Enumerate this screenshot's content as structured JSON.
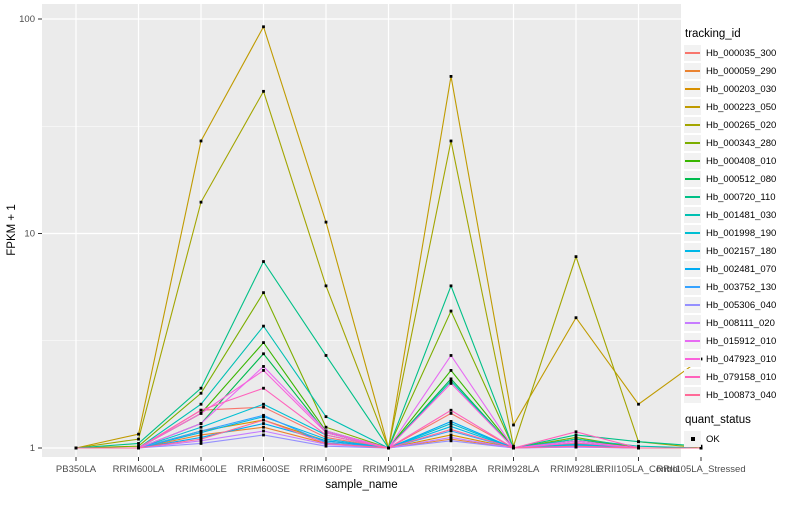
{
  "chart_data": {
    "type": "line",
    "title": "",
    "xlabel": "sample_name",
    "ylabel": "FPKM + 1",
    "y_scale": "log10",
    "y_ticks": [
      1,
      10,
      100
    ],
    "ylim": [
      0.95,
      110
    ],
    "grid": true,
    "legend_position": "right",
    "panel_background": "#EBEBEB",
    "gridline_color": "#FFFFFF",
    "point_marker": "black-square",
    "categories": [
      "PB350LA",
      "RRIM600LA",
      "RRIM600LE",
      "RRIM600SE",
      "RRIM600PE",
      "RRIM901LA",
      "RRIM928BA",
      "RRIM928LA",
      "RRIM928LE",
      "RRII105LA_Control",
      "RRII105LA_Stressed"
    ],
    "series": [
      {
        "name": "Hb_000035_300",
        "color": "#F8766D",
        "values": [
          1,
          1,
          1.5,
          1.55,
          1.12,
          1,
          1.45,
          1,
          1.05,
          1,
          1
        ]
      },
      {
        "name": "Hb_000059_290",
        "color": "#EA8331",
        "values": [
          1,
          1,
          1.15,
          1.25,
          1.05,
          1,
          1.1,
          1,
          1.02,
          1,
          1
        ]
      },
      {
        "name": "Hb_000203_030",
        "color": "#D89000",
        "values": [
          1,
          1,
          1.2,
          1.35,
          1.08,
          1,
          1.15,
          1,
          1.03,
          1,
          1
        ]
      },
      {
        "name": "Hb_000223_050",
        "color": "#C09B00",
        "values": [
          1,
          1.16,
          27,
          92,
          11.3,
          1,
          54,
          1.28,
          4.05,
          1.6,
          2.6
        ]
      },
      {
        "name": "Hb_000265_020",
        "color": "#A3A500",
        "values": [
          1,
          1.1,
          14,
          46,
          5.7,
          1,
          27,
          1.02,
          7.8,
          1.07,
          1
        ]
      },
      {
        "name": "Hb_000343_280",
        "color": "#7CAE00",
        "values": [
          1,
          1.02,
          1.8,
          5.3,
          1.25,
          1,
          4.35,
          1,
          1.12,
          1,
          1
        ]
      },
      {
        "name": "Hb_000408_010",
        "color": "#39B600",
        "values": [
          1,
          1,
          1.45,
          3.1,
          1.2,
          1,
          2.3,
          1,
          1.1,
          1,
          1
        ]
      },
      {
        "name": "Hb_000512_080",
        "color": "#00BB4E",
        "values": [
          1,
          1,
          1.3,
          2.75,
          1.18,
          1,
          2.1,
          1,
          1.08,
          1,
          1
        ]
      },
      {
        "name": "Hb_000720_110",
        "color": "#00C087",
        "values": [
          1,
          1.05,
          1.9,
          7.4,
          2.7,
          1,
          5.7,
          1,
          1.15,
          1.07,
          1.02
        ]
      },
      {
        "name": "Hb_001481_030",
        "color": "#00C0B2",
        "values": [
          1,
          1,
          1.6,
          3.7,
          1.4,
          1,
          2.05,
          1,
          1.1,
          1.02,
          1
        ]
      },
      {
        "name": "Hb_001998_190",
        "color": "#00BFD3",
        "values": [
          1,
          1,
          1.25,
          1.6,
          1.15,
          1,
          1.3,
          1,
          1.04,
          1,
          1
        ]
      },
      {
        "name": "Hb_002157_180",
        "color": "#00B8E7",
        "values": [
          1,
          1,
          1.18,
          1.4,
          1.1,
          1,
          1.26,
          1,
          1.03,
          1,
          1
        ]
      },
      {
        "name": "Hb_002481_070",
        "color": "#00ACF3",
        "values": [
          1,
          1,
          1.12,
          1.3,
          1.08,
          1,
          1.33,
          1,
          1.02,
          1,
          1
        ]
      },
      {
        "name": "Hb_003752_130",
        "color": "#35A2FF",
        "values": [
          1,
          1,
          1.2,
          1.42,
          1.06,
          1,
          1.2,
          1,
          1.02,
          1,
          1
        ]
      },
      {
        "name": "Hb_005306_040",
        "color": "#9590FF",
        "values": [
          1,
          1,
          1.05,
          1.15,
          1.02,
          1,
          1.08,
          1,
          1.01,
          1,
          1
        ]
      },
      {
        "name": "Hb_008111_020",
        "color": "#C77CFF",
        "values": [
          1,
          1,
          1.08,
          1.2,
          1.04,
          1,
          1.12,
          1,
          1.01,
          1,
          1
        ]
      },
      {
        "name": "Hb_015912_010",
        "color": "#E76BF3",
        "values": [
          1,
          1,
          1.3,
          2.4,
          1.2,
          1,
          2.7,
          1,
          1.08,
          1,
          1
        ]
      },
      {
        "name": "Hb_047923_010",
        "color": "#FA62DB",
        "values": [
          1,
          1,
          1.45,
          2.3,
          1.18,
          1,
          2.0,
          1,
          1.06,
          1,
          1
        ]
      },
      {
        "name": "Hb_079158_010",
        "color": "#FF62BC",
        "values": [
          1,
          1,
          1.5,
          1.9,
          1.15,
          1,
          1.5,
          1,
          1.19,
          1,
          1
        ]
      },
      {
        "name": "Hb_100873_040",
        "color": "#FF6A98",
        "values": [
          1,
          1,
          1.1,
          1.35,
          1.05,
          1,
          1.22,
          1,
          1.02,
          1,
          1
        ]
      }
    ]
  },
  "legend": {
    "tracking_title": "tracking_id",
    "quant_title": "quant_status",
    "quant_ok_label": "OK"
  }
}
